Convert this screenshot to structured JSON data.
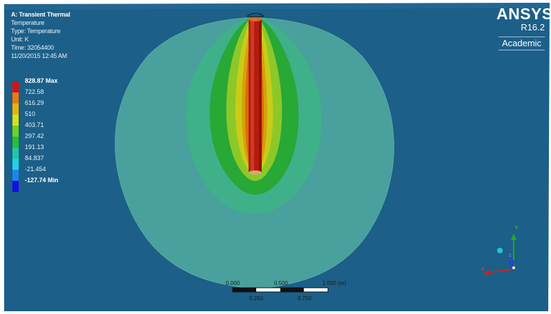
{
  "header": {
    "analysis": "A: Transient Thermal",
    "result": "Temperature",
    "type": "Type: Temperature",
    "unit": "Unit: K",
    "time": "Time: 32054400",
    "date": "11/20/2015 12:45 AM"
  },
  "legend": [
    {
      "label": "828.87 Max",
      "color": "#dc1010",
      "emphasis": true
    },
    {
      "label": "722.58",
      "color": "#f07a06",
      "emphasis": false
    },
    {
      "label": "616.29",
      "color": "#eab406",
      "emphasis": false
    },
    {
      "label": "510",
      "color": "#d6e218",
      "emphasis": false
    },
    {
      "label": "403.71",
      "color": "#72d21c",
      "emphasis": false
    },
    {
      "label": "297.42",
      "color": "#20c238",
      "emphasis": false
    },
    {
      "label": "191.13",
      "color": "#20c8a2",
      "emphasis": false
    },
    {
      "label": "84.837",
      "color": "#20d2e6",
      "emphasis": false
    },
    {
      "label": "-21.454",
      "color": "#1c86ee",
      "emphasis": false
    },
    {
      "label": "-127.74 Min",
      "color": "#1010e6",
      "emphasis": true
    }
  ],
  "logo": {
    "brand": "ANSYS",
    "version": "R16.2",
    "edition": "Academic"
  },
  "scale_bar": {
    "top_labels": [
      "0.000",
      "0.500",
      "1.000 (m)"
    ],
    "bottom_labels": [
      "0.250",
      "0.750"
    ]
  },
  "triad": {
    "axes": [
      "Y",
      "Z",
      "X"
    ]
  },
  "colors": {
    "background": "#1c5f88",
    "outer_region": "#49a09c",
    "model_edge": "#5aaca2",
    "hot_core": "#b41d0e"
  }
}
